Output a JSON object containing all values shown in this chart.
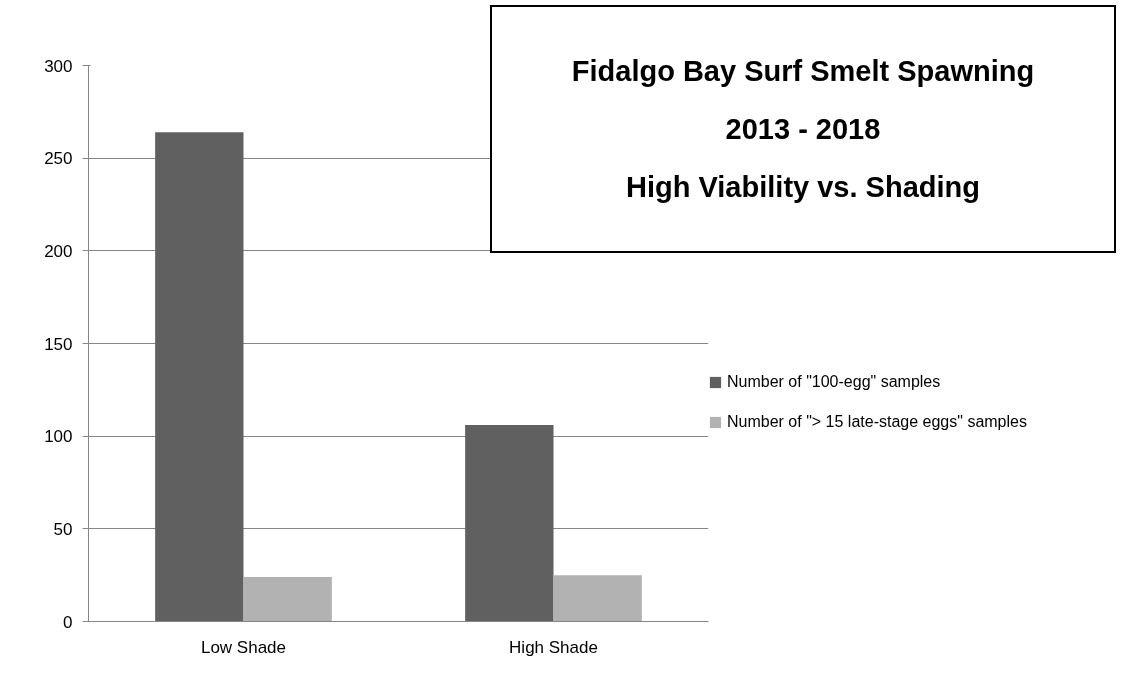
{
  "chart_data": {
    "type": "bar",
    "title": "Fidalgo Bay Surf Smelt Spawning\n2013 - 2018\nHigh Viability vs. Shading",
    "categories": [
      "Low Shade",
      "High Shade"
    ],
    "series": [
      {
        "name": "Number of \"100-egg\" samples",
        "color": "#606060",
        "values": [
          264,
          106
        ]
      },
      {
        "name": "Number of \"> 15 late-stage eggs\" samples",
        "color": "#b2b2b2",
        "values": [
          24,
          25
        ]
      }
    ],
    "ylim": [
      0,
      300
    ],
    "yticks": [
      0,
      50,
      100,
      150,
      200,
      250,
      300
    ],
    "grid": "y",
    "legend": "right"
  }
}
